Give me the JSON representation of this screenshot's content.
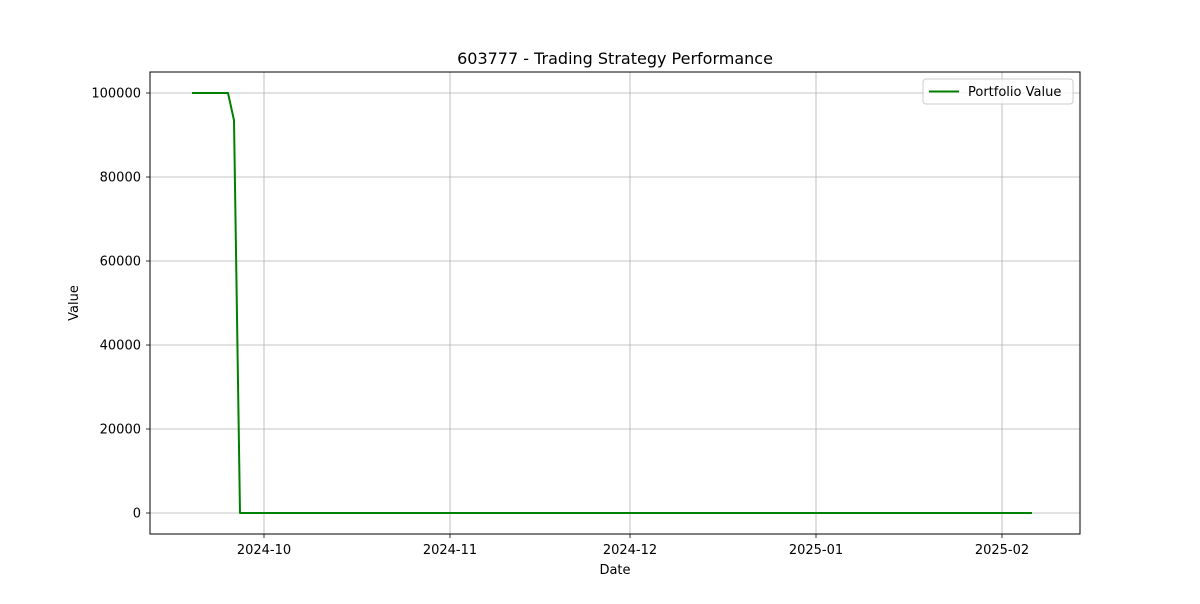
{
  "chart_data": {
    "type": "line",
    "title": "603777 - Trading Strategy Performance",
    "xlabel": "Date",
    "ylabel": "Value",
    "x_ticks": [
      "2024-10",
      "2024-11",
      "2024-12",
      "2025-01",
      "2025-02"
    ],
    "y_ticks": [
      0,
      20000,
      40000,
      60000,
      80000,
      100000
    ],
    "xlim": [
      "2024-09-12",
      "2025-02-14"
    ],
    "ylim": [
      -5000,
      105000
    ],
    "grid": true,
    "legend_position": "top-right",
    "series": [
      {
        "name": "Portfolio Value",
        "color": "#008000",
        "x": [
          "2024-09-19",
          "2024-09-20",
          "2024-09-23",
          "2024-09-24",
          "2024-09-25",
          "2024-09-26",
          "2024-09-27",
          "2024-09-30",
          "2024-10-08",
          "2024-10-31",
          "2024-11-29",
          "2024-12-31",
          "2025-01-27",
          "2025-02-05",
          "2025-02-06"
        ],
        "values": [
          100000,
          100000,
          100000,
          100000,
          100000,
          93500,
          0,
          0,
          0,
          0,
          0,
          0,
          0,
          0,
          0
        ]
      }
    ]
  }
}
